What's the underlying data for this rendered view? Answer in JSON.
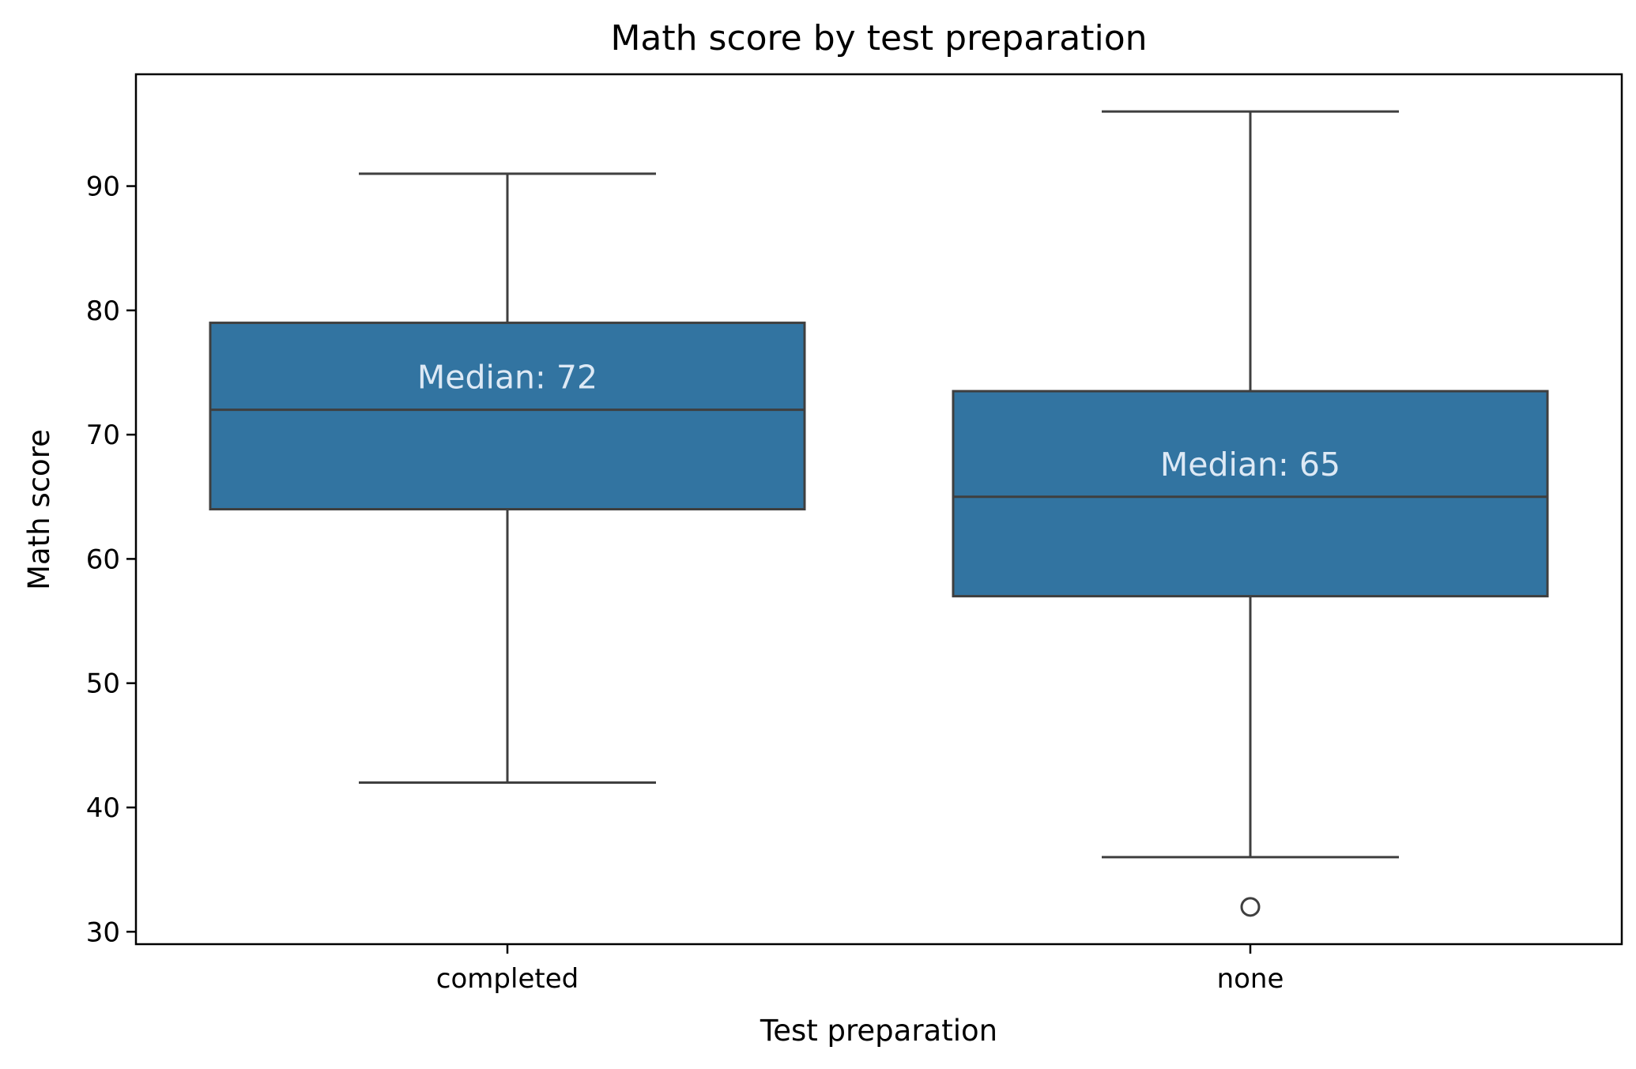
{
  "chart_data": {
    "type": "box",
    "title": "Math score by test preparation",
    "xlabel": "Test preparation",
    "ylabel": "Math score",
    "ylim": [
      29,
      99
    ],
    "yticks": [
      30,
      40,
      50,
      60,
      70,
      80,
      90
    ],
    "grid": false,
    "categories": [
      "completed",
      "none"
    ],
    "boxes": [
      {
        "category": "completed",
        "whisker_low": 42,
        "q1": 64,
        "median": 72,
        "q3": 79,
        "whisker_high": 91,
        "outliers": [],
        "median_label": "Median: 72"
      },
      {
        "category": "none",
        "whisker_low": 36,
        "q1": 57,
        "median": 65,
        "q3": 73.5,
        "whisker_high": 96,
        "outliers": [
          32
        ],
        "median_label": "Median: 65"
      }
    ]
  },
  "colors": {
    "box_fill": "#3274a1",
    "line": "#3f3f3f",
    "median_label": "#dde9f5",
    "axis": "#000000"
  }
}
